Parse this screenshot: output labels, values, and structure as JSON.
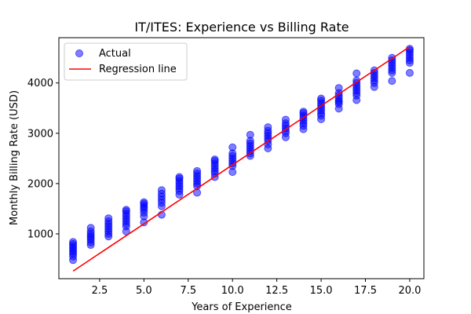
{
  "chart_data": {
    "type": "scatter",
    "title": "IT/ITES: Experience vs Billing Rate",
    "xlabel": "Years of Experience",
    "ylabel": "Monthly Billing Rate (USD)",
    "xlim": [
      0.2,
      20.8
    ],
    "ylim": [
      110,
      4900
    ],
    "x_ticks": [
      2.5,
      5.0,
      7.5,
      10.0,
      12.5,
      15.0,
      17.5,
      20.0
    ],
    "x_tick_labels": [
      "2.5",
      "5.0",
      "7.5",
      "10.0",
      "12.5",
      "15.0",
      "17.5",
      "20.0"
    ],
    "y_ticks": [
      1000,
      2000,
      3000,
      4000
    ],
    "y_tick_labels": [
      "1000",
      "2000",
      "3000",
      "4000"
    ],
    "grid": false,
    "legend_position": "upper-left",
    "series": [
      {
        "name": "Actual",
        "kind": "scatter",
        "color": "#0000ff",
        "points": [
          [
            1,
            480
          ],
          [
            1,
            550
          ],
          [
            1,
            600
          ],
          [
            1,
            640
          ],
          [
            1,
            680
          ],
          [
            1,
            720
          ],
          [
            1,
            760
          ],
          [
            1,
            800
          ],
          [
            1,
            840
          ],
          [
            2,
            780
          ],
          [
            2,
            830
          ],
          [
            2,
            880
          ],
          [
            2,
            920
          ],
          [
            2,
            960
          ],
          [
            2,
            1000
          ],
          [
            2,
            1050
          ],
          [
            2,
            1120
          ],
          [
            3,
            950
          ],
          [
            3,
            1000
          ],
          [
            3,
            1050
          ],
          [
            3,
            1100
          ],
          [
            3,
            1150
          ],
          [
            3,
            1200
          ],
          [
            3,
            1250
          ],
          [
            3,
            1310
          ],
          [
            4,
            1050
          ],
          [
            4,
            1150
          ],
          [
            4,
            1200
          ],
          [
            4,
            1250
          ],
          [
            4,
            1300
          ],
          [
            4,
            1350
          ],
          [
            4,
            1400
          ],
          [
            4,
            1450
          ],
          [
            4,
            1480
          ],
          [
            5,
            1230
          ],
          [
            5,
            1350
          ],
          [
            5,
            1420
          ],
          [
            5,
            1480
          ],
          [
            5,
            1520
          ],
          [
            5,
            1560
          ],
          [
            5,
            1600
          ],
          [
            5,
            1630
          ],
          [
            6,
            1380
          ],
          [
            6,
            1550
          ],
          [
            6,
            1620
          ],
          [
            6,
            1680
          ],
          [
            6,
            1740
          ],
          [
            6,
            1800
          ],
          [
            6,
            1870
          ],
          [
            7,
            1780
          ],
          [
            7,
            1850
          ],
          [
            7,
            1900
          ],
          [
            7,
            1950
          ],
          [
            7,
            2000
          ],
          [
            7,
            2050
          ],
          [
            7,
            2100
          ],
          [
            7,
            2130
          ],
          [
            8,
            1820
          ],
          [
            8,
            1950
          ],
          [
            8,
            2000
          ],
          [
            8,
            2050
          ],
          [
            8,
            2100
          ],
          [
            8,
            2150
          ],
          [
            8,
            2200
          ],
          [
            8,
            2250
          ],
          [
            9,
            2130
          ],
          [
            9,
            2200
          ],
          [
            9,
            2250
          ],
          [
            9,
            2300
          ],
          [
            9,
            2350
          ],
          [
            9,
            2400
          ],
          [
            9,
            2450
          ],
          [
            9,
            2480
          ],
          [
            10,
            2230
          ],
          [
            10,
            2350
          ],
          [
            10,
            2400
          ],
          [
            10,
            2450
          ],
          [
            10,
            2500
          ],
          [
            10,
            2550
          ],
          [
            10,
            2600
          ],
          [
            10,
            2720
          ],
          [
            11,
            2550
          ],
          [
            11,
            2600
          ],
          [
            11,
            2650
          ],
          [
            11,
            2700
          ],
          [
            11,
            2750
          ],
          [
            11,
            2800
          ],
          [
            11,
            2850
          ],
          [
            11,
            2970
          ],
          [
            12,
            2700
          ],
          [
            12,
            2780
          ],
          [
            12,
            2850
          ],
          [
            12,
            2900
          ],
          [
            12,
            2950
          ],
          [
            12,
            3000
          ],
          [
            12,
            3050
          ],
          [
            12,
            3120
          ],
          [
            13,
            2920
          ],
          [
            13,
            3000
          ],
          [
            13,
            3050
          ],
          [
            13,
            3100
          ],
          [
            13,
            3150
          ],
          [
            13,
            3200
          ],
          [
            13,
            3270
          ],
          [
            14,
            3080
          ],
          [
            14,
            3150
          ],
          [
            14,
            3200
          ],
          [
            14,
            3250
          ],
          [
            14,
            3300
          ],
          [
            14,
            3350
          ],
          [
            14,
            3400
          ],
          [
            14,
            3430
          ],
          [
            15,
            3280
          ],
          [
            15,
            3350
          ],
          [
            15,
            3400
          ],
          [
            15,
            3450
          ],
          [
            15,
            3500
          ],
          [
            15,
            3550
          ],
          [
            15,
            3600
          ],
          [
            15,
            3650
          ],
          [
            15,
            3690
          ],
          [
            16,
            3490
          ],
          [
            16,
            3580
          ],
          [
            16,
            3620
          ],
          [
            16,
            3650
          ],
          [
            16,
            3700
          ],
          [
            16,
            3750
          ],
          [
            16,
            3800
          ],
          [
            16,
            3900
          ],
          [
            17,
            3660
          ],
          [
            17,
            3750
          ],
          [
            17,
            3800
          ],
          [
            17,
            3850
          ],
          [
            17,
            3900
          ],
          [
            17,
            3950
          ],
          [
            17,
            4000
          ],
          [
            17,
            4050
          ],
          [
            17,
            4190
          ],
          [
            18,
            3920
          ],
          [
            18,
            4000
          ],
          [
            18,
            4050
          ],
          [
            18,
            4100
          ],
          [
            18,
            4150
          ],
          [
            18,
            4200
          ],
          [
            18,
            4250
          ],
          [
            19,
            4040
          ],
          [
            19,
            4200
          ],
          [
            19,
            4250
          ],
          [
            19,
            4300
          ],
          [
            19,
            4350
          ],
          [
            19,
            4400
          ],
          [
            19,
            4450
          ],
          [
            19,
            4500
          ],
          [
            20,
            4200
          ],
          [
            20,
            4400
          ],
          [
            20,
            4450
          ],
          [
            20,
            4500
          ],
          [
            20,
            4550
          ],
          [
            20,
            4600
          ],
          [
            20,
            4650
          ],
          [
            20,
            4680
          ]
        ]
      },
      {
        "name": "Regression line",
        "kind": "line",
        "color": "#ff0000",
        "x": [
          1,
          20
        ],
        "y": [
          260,
          4720
        ]
      }
    ]
  }
}
